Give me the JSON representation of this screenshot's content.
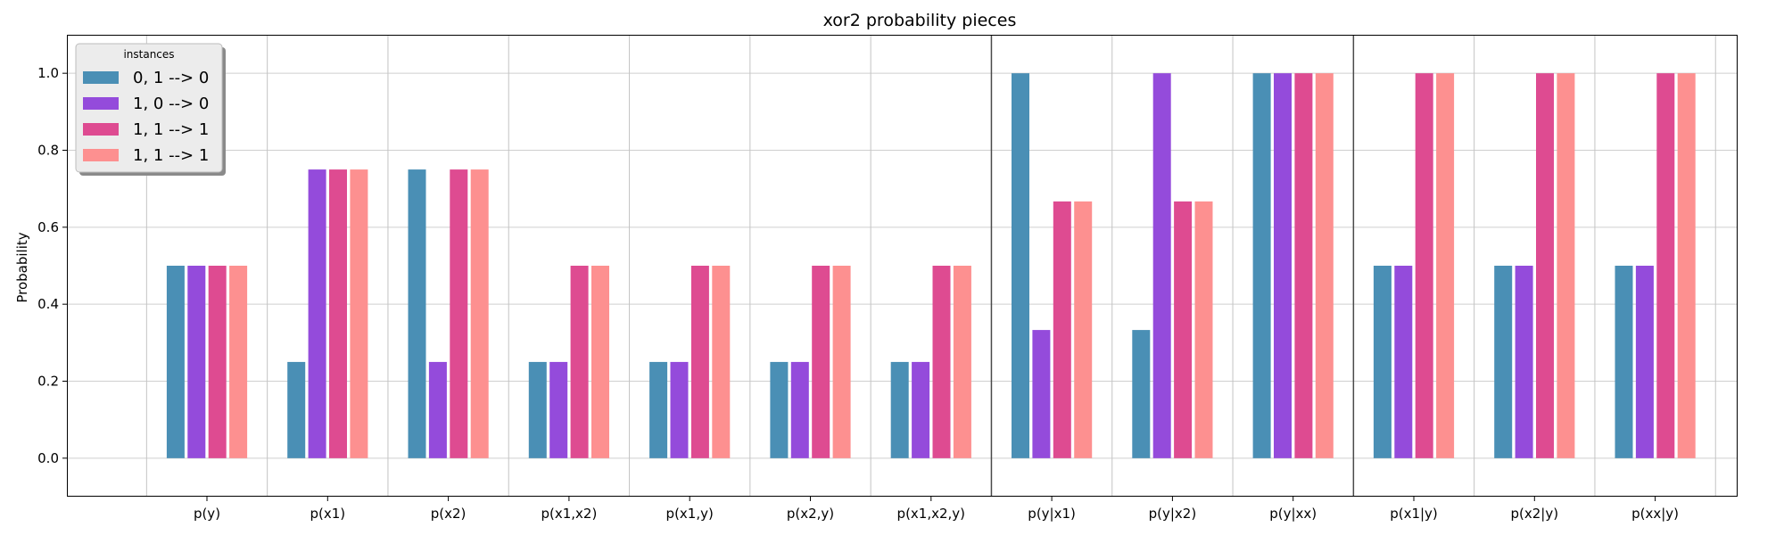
{
  "chart_data": {
    "type": "bar",
    "title": "xor2 probability pieces",
    "xlabel": "",
    "ylabel": "Probability",
    "ylim": [
      -0.1,
      1.1
    ],
    "yticks": [
      "0.0",
      "0.2",
      "0.4",
      "0.6",
      "0.8",
      "1.0"
    ],
    "grid": true,
    "legend_placement": "top-left",
    "legend_title": "instances",
    "categories": [
      "p(y)",
      "p(x1)",
      "p(x2)",
      "p(x1,x2)",
      "p(x1,y)",
      "p(x2,y)",
      "p(x1,x2,y)",
      "p(y|x1)",
      "p(y|x2)",
      "p(y|xx)",
      "p(x1|y)",
      "p(x2|y)",
      "p(xx|y)"
    ],
    "group_separators_after": [
      "p(x1,x2,y)",
      "p(y|xx)"
    ],
    "series": [
      {
        "name": "0, 1 --> 0",
        "color": "#4a8fb5",
        "values": [
          0.5,
          0.25,
          0.75,
          0.25,
          0.25,
          0.25,
          0.25,
          1.0,
          0.333,
          1.0,
          0.5,
          0.5,
          0.5
        ]
      },
      {
        "name": "1, 0 --> 0",
        "color": "#944bdb",
        "values": [
          0.5,
          0.75,
          0.25,
          0.25,
          0.25,
          0.25,
          0.25,
          0.333,
          1.0,
          1.0,
          0.5,
          0.5,
          0.5
        ]
      },
      {
        "name": "1, 1 --> 1",
        "color": "#de4b91",
        "values": [
          0.5,
          0.75,
          0.75,
          0.5,
          0.5,
          0.5,
          0.5,
          0.667,
          0.667,
          1.0,
          1.0,
          1.0,
          1.0
        ]
      },
      {
        "name": "1, 1 --> 1",
        "color": "#fd9090",
        "values": [
          0.5,
          0.75,
          0.75,
          0.5,
          0.5,
          0.5,
          0.5,
          0.667,
          0.667,
          1.0,
          1.0,
          1.0,
          1.0
        ]
      }
    ]
  }
}
